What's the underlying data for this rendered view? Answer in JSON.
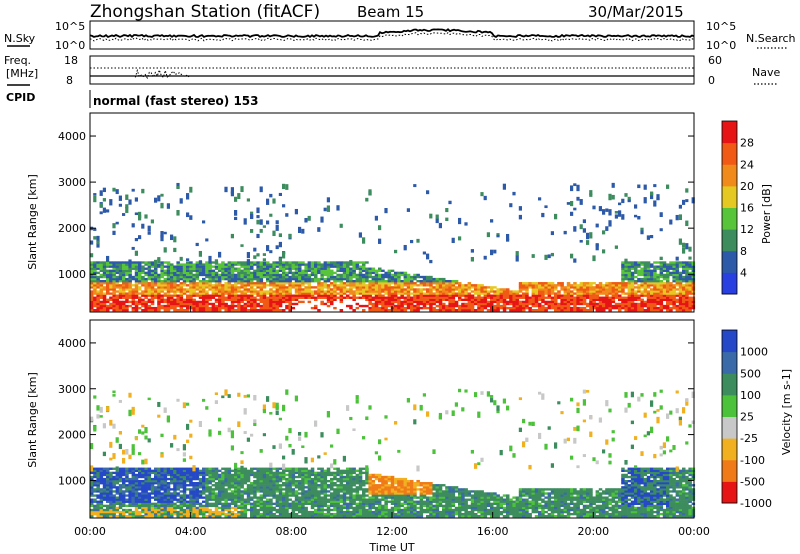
{
  "header": {
    "station": "Zhongshan Station (fitACF)",
    "beam": "Beam 15",
    "date": "30/Mar/2015"
  },
  "strip_sky": {
    "left_label": "N.Sky",
    "left_ticks": [
      "10^5",
      "10^0"
    ],
    "right_ticks": [
      "10^5",
      "10^0"
    ],
    "right_label": "N.Search"
  },
  "strip_freq": {
    "left_label_1": "Freq.",
    "left_label_2": "[MHz]",
    "left_ticks": [
      "18",
      "8"
    ],
    "right_ticks": [
      "60",
      "0"
    ],
    "right_label": "Nave"
  },
  "cpid": {
    "label": "CPID",
    "mode": "normal (fast stereo) 153"
  },
  "chart_data": [
    {
      "type": "heatmap",
      "title": "",
      "ylabel": "Slant Range [km]",
      "ylim": [
        180,
        4500
      ],
      "yticks": [
        "1000",
        "2000",
        "3000",
        "4000"
      ],
      "xlabel": "",
      "colorbar": {
        "label": "Power [dB]",
        "ticks": [
          "4",
          "8",
          "12",
          "16",
          "20",
          "24",
          "28"
        ],
        "colors": [
          "#2a3fe0",
          "#2d5aa8",
          "#3d8c5e",
          "#58c43a",
          "#e6c822",
          "#f08a1a",
          "#f05a14",
          "#e61414"
        ],
        "range": [
          0,
          30
        ]
      }
    },
    {
      "type": "heatmap",
      "title": "",
      "ylabel": "Slant Range [km]",
      "ylim": [
        180,
        4500
      ],
      "yticks": [
        "1000",
        "2000",
        "3000",
        "4000"
      ],
      "xlabel": "Time UT",
      "xticks": [
        "00:00",
        "04:00",
        "08:00",
        "12:00",
        "16:00",
        "20:00",
        "00:00"
      ],
      "colorbar": {
        "label": "Velocity [m s-1]",
        "ticks": [
          "1000",
          "500",
          "100",
          "25",
          "-25",
          "-100",
          "-500",
          "-1000"
        ],
        "colors": [
          "#2448c8",
          "#3a6aa8",
          "#3d8c5e",
          "#4cc23a",
          "#c8c8c8",
          "#f0b020",
          "#f07a18",
          "#e61414"
        ]
      }
    }
  ]
}
